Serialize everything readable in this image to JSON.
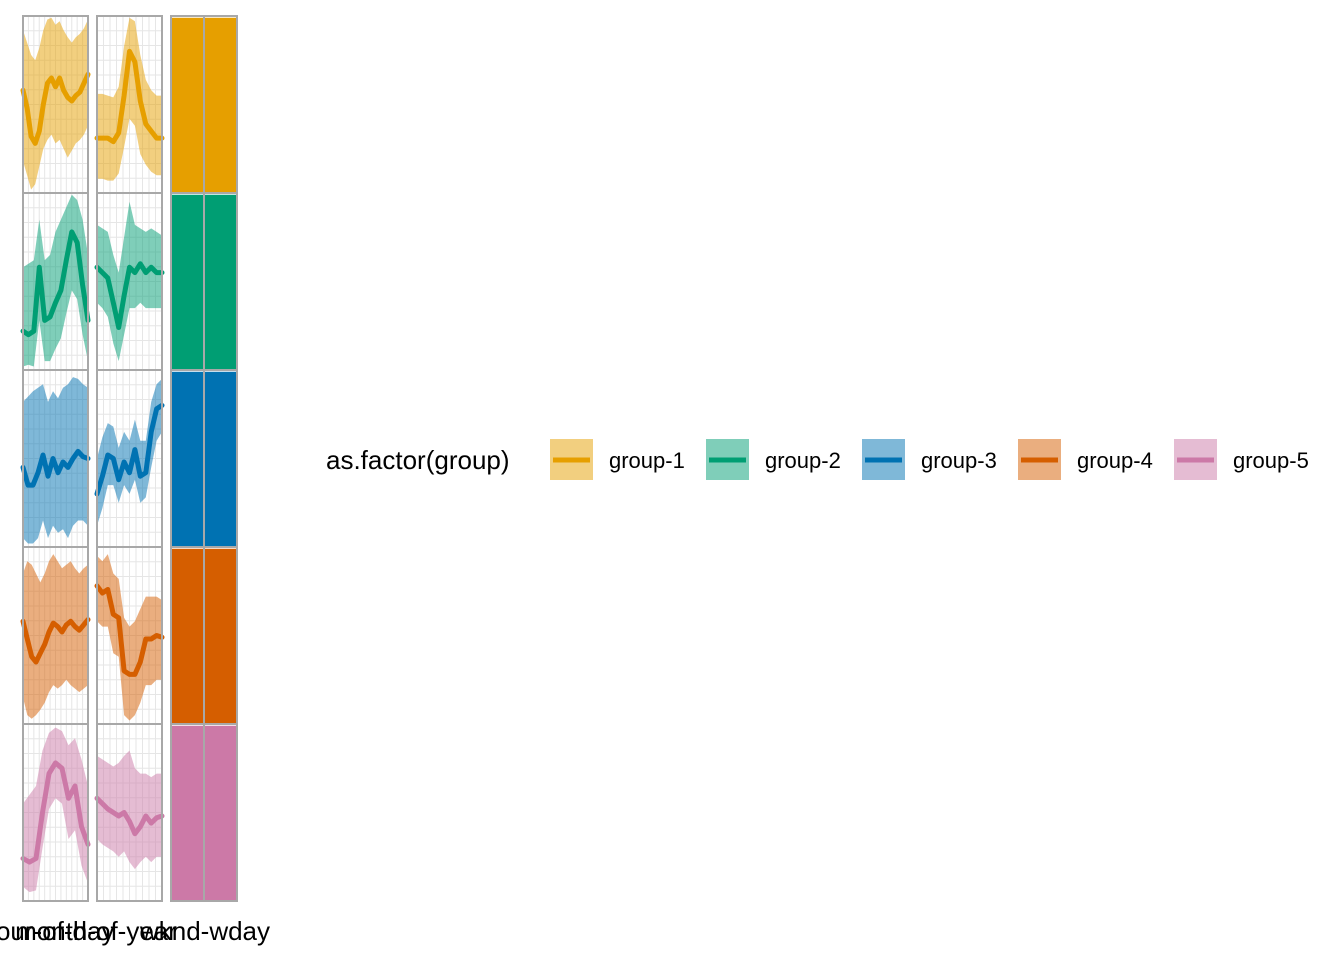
{
  "chart_data": {
    "type": "line",
    "title": "",
    "facet_columns": [
      "hour-of-day",
      "month-of-year",
      "wknd-wday"
    ],
    "x_axis_text": [
      "hour-of-day",
      "month-of-year",
      "wknd-wday"
    ],
    "legend": {
      "title": "as.factor(group)",
      "placement": "right"
    },
    "groups": [
      {
        "name": "group-1",
        "color": "#E69F00",
        "hour_of_day": {
          "mid": [
            0.58,
            0.48,
            0.32,
            0.28,
            0.35,
            0.5,
            0.62,
            0.65,
            0.6,
            0.65,
            0.58,
            0.54,
            0.52,
            0.55,
            0.57,
            0.62,
            0.67
          ],
          "lower": [
            0.18,
            0.1,
            0.02,
            0.05,
            0.15,
            0.25,
            0.3,
            0.33,
            0.28,
            0.3,
            0.25,
            0.2,
            0.24,
            0.28,
            0.3,
            0.33,
            0.38
          ],
          "upper": [
            0.92,
            0.85,
            0.78,
            0.75,
            0.82,
            0.92,
            0.98,
            0.99,
            0.95,
            0.97,
            0.92,
            0.88,
            0.85,
            0.88,
            0.9,
            0.93,
            0.98
          ]
        },
        "month_of_year": {
          "mid": [
            0.31,
            0.31,
            0.31,
            0.29,
            0.34,
            0.55,
            0.8,
            0.74,
            0.52,
            0.39,
            0.35,
            0.31,
            0.31
          ],
          "lower": [
            0.08,
            0.08,
            0.07,
            0.07,
            0.11,
            0.26,
            0.42,
            0.38,
            0.22,
            0.16,
            0.12,
            0.1,
            0.1
          ],
          "upper": [
            0.56,
            0.56,
            0.55,
            0.54,
            0.6,
            0.83,
            0.99,
            0.97,
            0.78,
            0.64,
            0.58,
            0.55,
            0.55
          ]
        },
        "wknd_wday": [
          0.99,
          0.99
        ]
      },
      {
        "name": "group-2",
        "color": "#009E73",
        "hour_of_day": {
          "mid": [
            0.22,
            0.2,
            0.22,
            0.58,
            0.28,
            0.3,
            0.38,
            0.45,
            0.62,
            0.78,
            0.72,
            0.48,
            0.28
          ],
          "lower": [
            0.02,
            0.03,
            0.02,
            0.28,
            0.05,
            0.05,
            0.12,
            0.18,
            0.32,
            0.45,
            0.4,
            0.2,
            0.05
          ],
          "upper": [
            0.58,
            0.6,
            0.62,
            0.85,
            0.62,
            0.65,
            0.78,
            0.85,
            0.92,
            0.99,
            0.96,
            0.85,
            0.65
          ]
        },
        "month_of_year": {
          "mid": [
            0.58,
            0.55,
            0.52,
            0.38,
            0.24,
            0.42,
            0.58,
            0.55,
            0.6,
            0.55,
            0.58,
            0.55,
            0.55
          ],
          "lower": [
            0.38,
            0.35,
            0.3,
            0.15,
            0.05,
            0.2,
            0.35,
            0.35,
            0.38,
            0.35,
            0.35,
            0.35,
            0.35
          ],
          "upper": [
            0.82,
            0.8,
            0.78,
            0.65,
            0.55,
            0.75,
            0.95,
            0.82,
            0.8,
            0.78,
            0.8,
            0.78,
            0.76
          ]
        },
        "wknd_wday": [
          0.99,
          0.99
        ]
      },
      {
        "name": "group-3",
        "color": "#0072B2",
        "hour_of_day": {
          "mid": [
            0.45,
            0.35,
            0.35,
            0.42,
            0.52,
            0.4,
            0.5,
            0.42,
            0.48,
            0.45,
            0.5,
            0.54,
            0.51,
            0.5
          ],
          "lower": [
            0.05,
            0.02,
            0.02,
            0.05,
            0.15,
            0.05,
            0.12,
            0.08,
            0.1,
            0.05,
            0.12,
            0.15,
            0.15,
            0.12
          ],
          "upper": [
            0.82,
            0.85,
            0.88,
            0.9,
            0.92,
            0.82,
            0.88,
            0.84,
            0.9,
            0.92,
            0.96,
            0.95,
            0.92,
            0.9
          ]
        },
        "month_of_year": {
          "mid": [
            0.3,
            0.4,
            0.52,
            0.5,
            0.38,
            0.48,
            0.42,
            0.55,
            0.4,
            0.42,
            0.65,
            0.78,
            0.8
          ],
          "lower": [
            0.12,
            0.22,
            0.35,
            0.35,
            0.25,
            0.35,
            0.3,
            0.38,
            0.25,
            0.28,
            0.45,
            0.6,
            0.65
          ],
          "upper": [
            0.5,
            0.62,
            0.7,
            0.68,
            0.56,
            0.65,
            0.6,
            0.72,
            0.6,
            0.6,
            0.82,
            0.92,
            0.95
          ]
        },
        "wknd_wday": [
          0.99,
          0.99
        ]
      },
      {
        "name": "group-4",
        "color": "#D55E00",
        "hour_of_day": {
          "mid": [
            0.58,
            0.48,
            0.38,
            0.35,
            0.4,
            0.45,
            0.52,
            0.57,
            0.55,
            0.52,
            0.56,
            0.58,
            0.55,
            0.53,
            0.56,
            0.59
          ],
          "lower": [
            0.15,
            0.05,
            0.03,
            0.05,
            0.08,
            0.12,
            0.18,
            0.22,
            0.2,
            0.22,
            0.25,
            0.22,
            0.2,
            0.18,
            0.2,
            0.22
          ],
          "upper": [
            0.85,
            0.92,
            0.9,
            0.85,
            0.8,
            0.85,
            0.92,
            0.96,
            0.92,
            0.88,
            0.9,
            0.92,
            0.88,
            0.85,
            0.88,
            0.9
          ]
        },
        "month_of_year": {
          "mid": [
            0.78,
            0.74,
            0.76,
            0.62,
            0.6,
            0.3,
            0.28,
            0.28,
            0.35,
            0.48,
            0.48,
            0.5,
            0.49
          ],
          "lower": [
            0.58,
            0.55,
            0.55,
            0.4,
            0.38,
            0.05,
            0.02,
            0.05,
            0.12,
            0.22,
            0.22,
            0.25,
            0.25
          ],
          "upper": [
            0.95,
            0.92,
            0.96,
            0.85,
            0.82,
            0.6,
            0.55,
            0.58,
            0.65,
            0.72,
            0.72,
            0.72,
            0.7
          ]
        },
        "wknd_wday": [
          0.99,
          0.99
        ]
      },
      {
        "name": "group-5",
        "color": "#CC79A7",
        "hour_of_day": {
          "mid": [
            0.24,
            0.22,
            0.24,
            0.5,
            0.72,
            0.78,
            0.75,
            0.58,
            0.65,
            0.42,
            0.32
          ],
          "lower": [
            0.08,
            0.05,
            0.06,
            0.3,
            0.52,
            0.58,
            0.55,
            0.35,
            0.4,
            0.2,
            0.1
          ],
          "upper": [
            0.55,
            0.6,
            0.65,
            0.85,
            0.95,
            0.98,
            0.96,
            0.88,
            0.92,
            0.8,
            0.65
          ]
        },
        "month_of_year": {
          "mid": [
            0.58,
            0.55,
            0.52,
            0.5,
            0.48,
            0.5,
            0.45,
            0.38,
            0.42,
            0.48,
            0.44,
            0.47,
            0.48
          ],
          "lower": [
            0.35,
            0.32,
            0.3,
            0.28,
            0.25,
            0.28,
            0.22,
            0.18,
            0.22,
            0.25,
            0.22,
            0.25,
            0.25
          ],
          "upper": [
            0.82,
            0.8,
            0.78,
            0.76,
            0.78,
            0.82,
            0.85,
            0.75,
            0.72,
            0.72,
            0.7,
            0.72,
            0.72
          ]
        },
        "wknd_wday": [
          0.99,
          0.99
        ]
      }
    ]
  }
}
